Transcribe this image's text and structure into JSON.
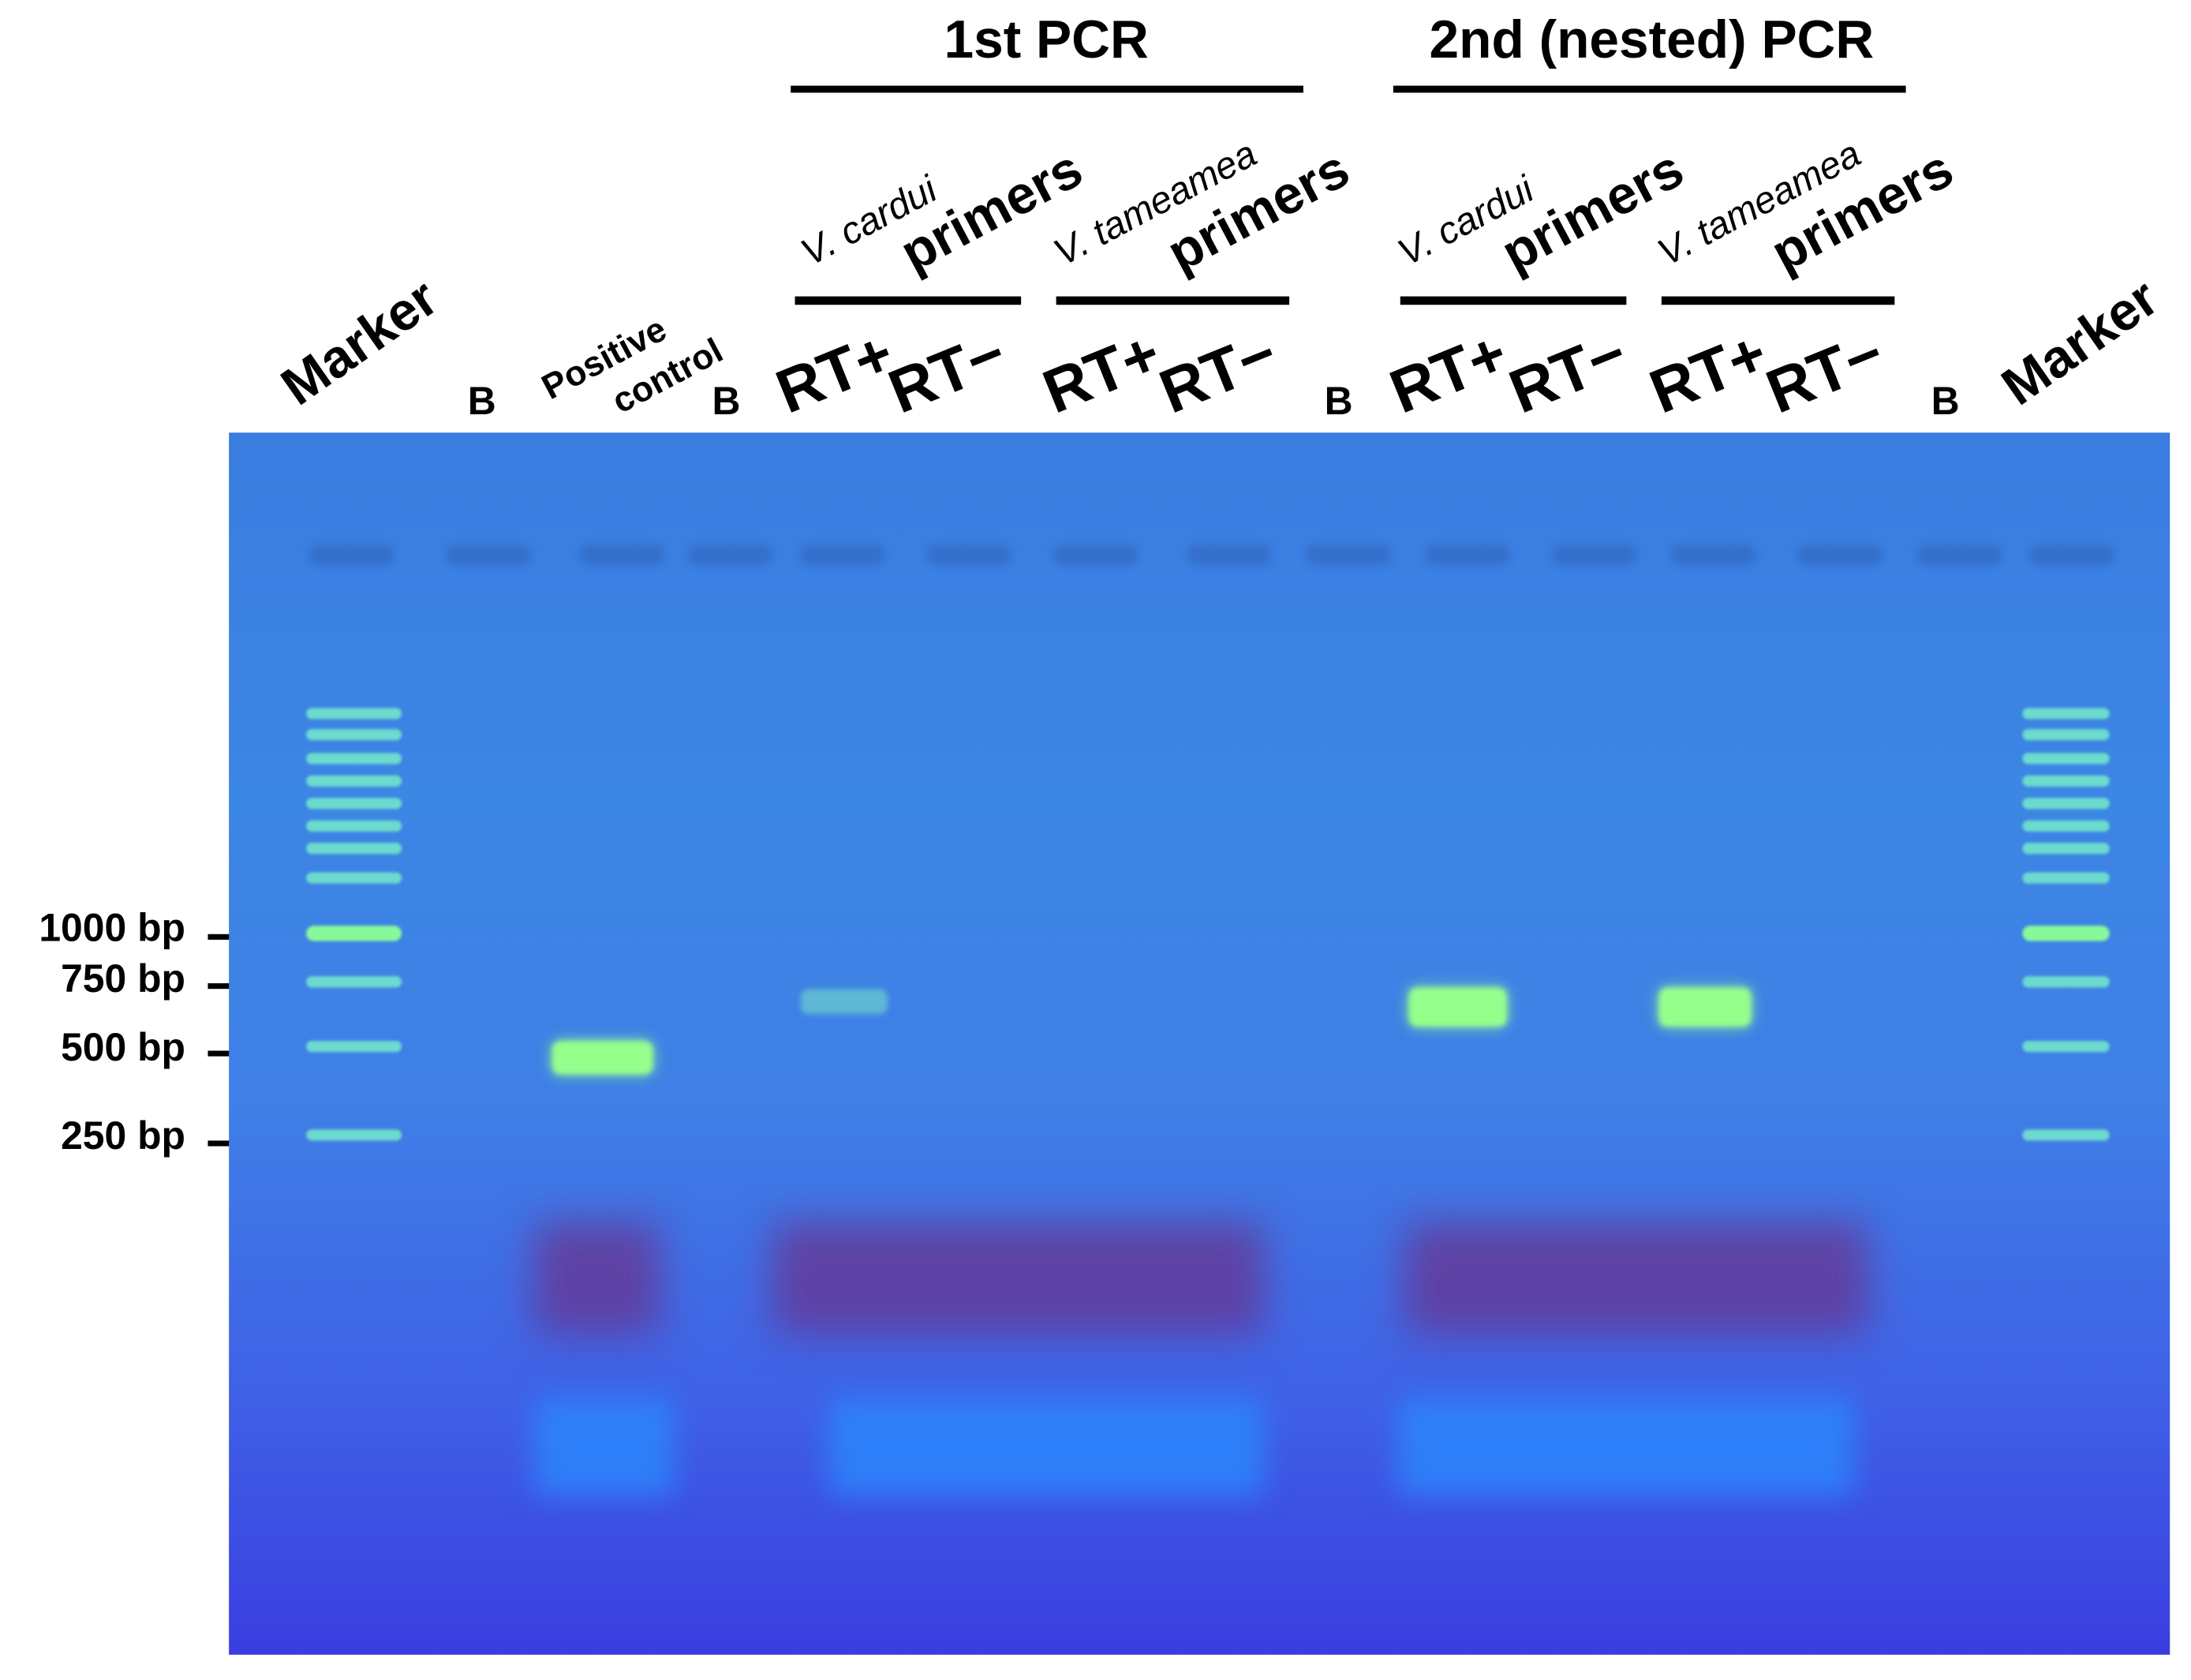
{
  "groups": [
    {
      "title": "1st PCR",
      "primer_sets": [
        {
          "species": "V. cardui",
          "primers": "primers",
          "lanes": [
            "RT+",
            "RT−"
          ]
        },
        {
          "species": "V. tameamea",
          "primers": "primers",
          "lanes": [
            "RT+",
            "RT−"
          ]
        }
      ]
    },
    {
      "title": "2nd (nested) PCR",
      "primer_sets": [
        {
          "species": "V. cardui",
          "primers": "primers",
          "lanes": [
            "RT+",
            "RT−"
          ]
        },
        {
          "species": "V. tameamea",
          "primers": "primers",
          "lanes": [
            "RT+",
            "RT−"
          ]
        }
      ]
    }
  ],
  "lane_labels": {
    "marker_left": "Marker",
    "marker_right": "Marker",
    "blank": "B",
    "positive_control_line1": "Positive",
    "positive_control_line2": "control"
  },
  "size_markers": [
    "1000 bp",
    "750 bp",
    "500 bp",
    "250 bp"
  ],
  "colors": {
    "gel": "#3c82e4",
    "band": "#7dff9a",
    "smear": "#6a2a8a"
  }
}
